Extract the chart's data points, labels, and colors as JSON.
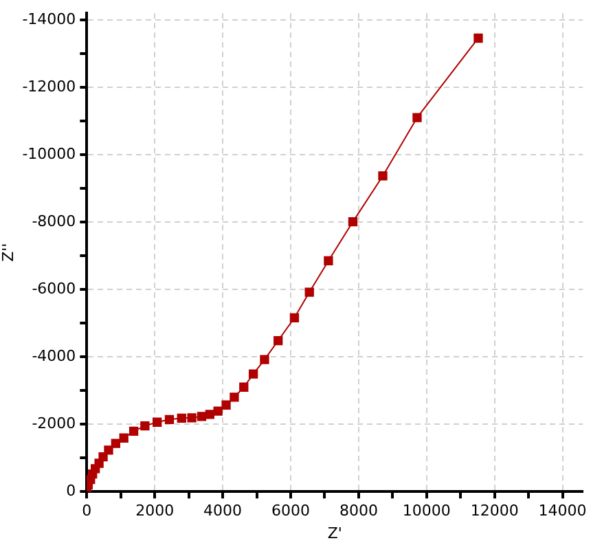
{
  "chart_data": {
    "type": "line",
    "xlabel": "Z'",
    "ylabel": "Z''",
    "x": [
      0,
      40,
      110,
      170,
      250,
      360,
      480,
      640,
      850,
      1090,
      1380,
      1710,
      2070,
      2430,
      2790,
      3090,
      3380,
      3620,
      3860,
      4100,
      4340,
      4620,
      4900,
      5230,
      5630,
      6110,
      6550,
      7110,
      7830,
      8710,
      9720,
      11520
    ],
    "series": [
      {
        "color": "#b00000",
        "values": [
          -40,
          -200,
          -360,
          -520,
          -680,
          -840,
          -1030,
          -1230,
          -1430,
          -1590,
          -1790,
          -1950,
          -2060,
          -2140,
          -2180,
          -2190,
          -2230,
          -2290,
          -2390,
          -2570,
          -2800,
          -3100,
          -3490,
          -3920,
          -4480,
          -5160,
          -5920,
          -6850,
          -8010,
          -9370,
          -11100,
          -13460
        ]
      }
    ],
    "xlim": [
      0,
      14600
    ],
    "ylim": [
      0,
      -14200
    ],
    "xticks": [
      0,
      {
        "value": 1000,
        "label": null
      },
      2000,
      {
        "value": 3000,
        "label": null
      },
      4000,
      {
        "value": 5000,
        "label": null
      },
      6000,
      {
        "value": 7000,
        "label": null
      },
      8000,
      {
        "value": 9000,
        "label": null
      },
      10000,
      {
        "value": 11000,
        "label": null
      },
      12000,
      {
        "value": 13000,
        "label": null
      },
      14000
    ],
    "yticks": [
      0,
      {
        "value": -1000,
        "label": null
      },
      -2000,
      {
        "value": -3000,
        "label": null
      },
      -4000,
      {
        "value": -5000,
        "label": null
      },
      -6000,
      {
        "value": -7000,
        "label": null
      },
      -8000,
      {
        "value": -9000,
        "label": null
      },
      -10000,
      {
        "value": -11000,
        "label": null
      },
      -12000,
      {
        "value": -13000,
        "label": null
      },
      -14000
    ],
    "grid": true,
    "legend": false,
    "marker": "square",
    "line_style": "solid"
  }
}
